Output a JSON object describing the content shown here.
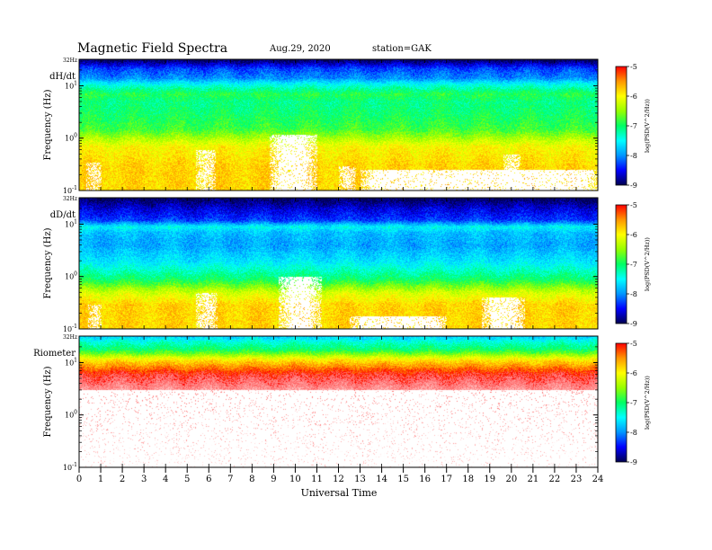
{
  "header": {
    "title": "Magnetic  Field  Spectra",
    "date": "Aug.29, 2020",
    "station": "station=GAK"
  },
  "x_axis": {
    "label": "Universal Time",
    "ticks": [
      "0",
      "1",
      "2",
      "3",
      "4",
      "5",
      "6",
      "7",
      "8",
      "9",
      "10",
      "11",
      "12",
      "13",
      "14",
      "15",
      "16",
      "17",
      "18",
      "19",
      "20",
      "21",
      "22",
      "23",
      "24"
    ],
    "range": [
      0,
      24
    ]
  },
  "colorbar": {
    "label": "log(PSD(V^2/Hz))",
    "ticks": [
      "-5",
      "-6",
      "-7",
      "-8",
      "-9"
    ],
    "range": [
      -9,
      -5
    ],
    "colors": [
      "#000050",
      "#0000ff",
      "#0096ff",
      "#00ffff",
      "#00ff64",
      "#96ff00",
      "#ffff00",
      "#ff9600",
      "#ff0000",
      "#ff4040",
      "#ffffff"
    ]
  },
  "chart_data": [
    {
      "type": "heatmap",
      "panel_label": "dH/dt",
      "ylabel": "Frequency (Hz)",
      "ytick_labels": [
        "32Hz",
        "10^1",
        "10^0",
        "10^-1"
      ],
      "ylim_hz": [
        0.1,
        32
      ],
      "xlabel": "Universal Time",
      "xlim": [
        0,
        24
      ],
      "colorbar_label": "log(PSD(V^2/Hz))",
      "colorbar_range": [
        -9,
        -5
      ],
      "profile": {
        "hz_levels": [
          32,
          22,
          14,
          11,
          9,
          7,
          5,
          3,
          1.5,
          0.7,
          0.3,
          0.1
        ],
        "log_psd": [
          -9,
          -8.3,
          -8.0,
          -7.5,
          -7.2,
          -6.9,
          -7.1,
          -7.0,
          -6.8,
          -6.0,
          -5.8,
          -5.8
        ]
      },
      "white_regions": [
        {
          "ut": [
            8.8,
            11.0
          ],
          "hz_max": 1.2
        },
        {
          "ut": [
            5.4,
            6.3
          ],
          "hz_max": 0.6
        },
        {
          "ut": [
            0.3,
            1.0
          ],
          "hz_max": 0.35
        },
        {
          "ut": [
            12.0,
            12.8
          ],
          "hz_max": 0.3
        },
        {
          "ut": [
            19.6,
            20.4
          ],
          "hz_max": 0.5
        },
        {
          "ut": [
            13.0,
            24.0
          ],
          "hz_max": 0.25
        }
      ]
    },
    {
      "type": "heatmap",
      "panel_label": "dD/dt",
      "ylabel": "Frequency (Hz)",
      "ytick_labels": [
        "32Hz",
        "10^1",
        "10^0",
        "10^-1"
      ],
      "ylim_hz": [
        0.1,
        32
      ],
      "xlabel": "Universal Time",
      "xlim": [
        0,
        24
      ],
      "colorbar_label": "log(PSD(V^2/Hz))",
      "colorbar_range": [
        -9,
        -5
      ],
      "profile": {
        "hz_levels": [
          32,
          20,
          12,
          9,
          7,
          4,
          2,
          0.9,
          0.5,
          0.3,
          0.1
        ],
        "log_psd": [
          -9,
          -8.6,
          -8.3,
          -7.5,
          -7.8,
          -7.9,
          -7.6,
          -7.0,
          -6.2,
          -5.8,
          -5.8
        ]
      },
      "white_regions": [
        {
          "ut": [
            9.2,
            11.2
          ],
          "hz_max": 1.0
        },
        {
          "ut": [
            5.4,
            6.4
          ],
          "hz_max": 0.5
        },
        {
          "ut": [
            0.4,
            1.0
          ],
          "hz_max": 0.3
        },
        {
          "ut": [
            18.6,
            20.6
          ],
          "hz_max": 0.4
        },
        {
          "ut": [
            12.5,
            17.0
          ],
          "hz_max": 0.18
        }
      ]
    },
    {
      "type": "heatmap",
      "panel_label": "Riometer",
      "ylabel": "Frequency (Hz)",
      "ytick_labels": [
        "32Hz",
        "10^1",
        "10^0",
        "10^-1"
      ],
      "ylim_hz": [
        0.1,
        32
      ],
      "xlabel": "Universal Time",
      "xlim": [
        0,
        24
      ],
      "colorbar_label": "log(PSD(V^2/Hz))",
      "colorbar_range": [
        -9,
        -5
      ],
      "profile": {
        "hz_levels": [
          32,
          24,
          18,
          15,
          12,
          10,
          8,
          6,
          3,
          0.1
        ],
        "log_psd": [
          -7.7,
          -7.3,
          -7.0,
          -6.6,
          -6.0,
          -5.7,
          -5.4,
          -5.0,
          -4.6,
          -4.2
        ]
      },
      "white_regions": []
    }
  ]
}
